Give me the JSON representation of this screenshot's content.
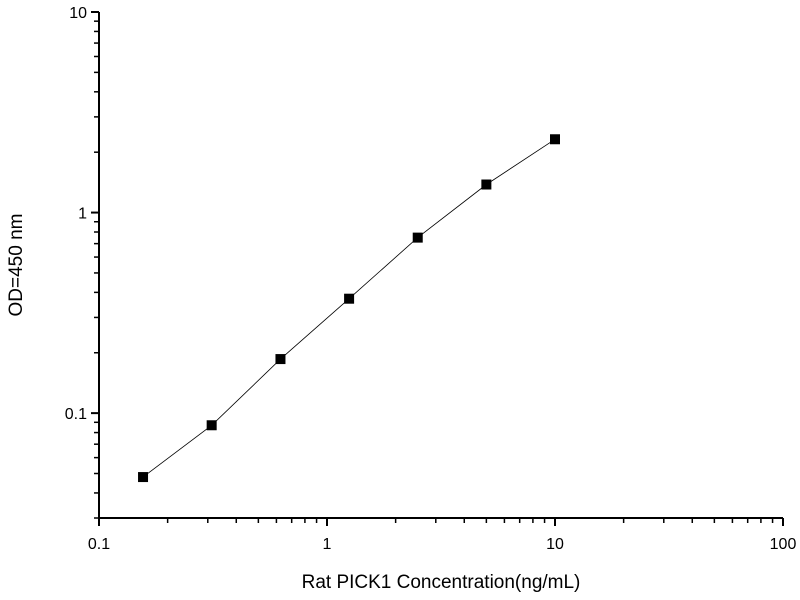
{
  "chart_data": {
    "type": "line",
    "title": "",
    "xlabel": "Rat PICK1 Concentration(ng/mL)",
    "ylabel": "OD=450 nm",
    "xscale": "log",
    "yscale": "log",
    "xlim": [
      0.1,
      100
    ],
    "ylim": [
      0.03,
      10
    ],
    "xticks": [
      "0.1",
      "1",
      "10",
      "100"
    ],
    "yticks": [
      "0.1",
      "1",
      "10"
    ],
    "grid": false,
    "legend": "none",
    "marker": "square",
    "line_color": "#000000",
    "marker_color": "#000000",
    "series": [
      {
        "x": [
          0.156,
          0.312,
          0.625,
          1.25,
          2.5,
          5,
          10
        ],
        "y": [
          0.048,
          0.087,
          0.186,
          0.372,
          0.75,
          1.38,
          2.32
        ]
      }
    ]
  }
}
